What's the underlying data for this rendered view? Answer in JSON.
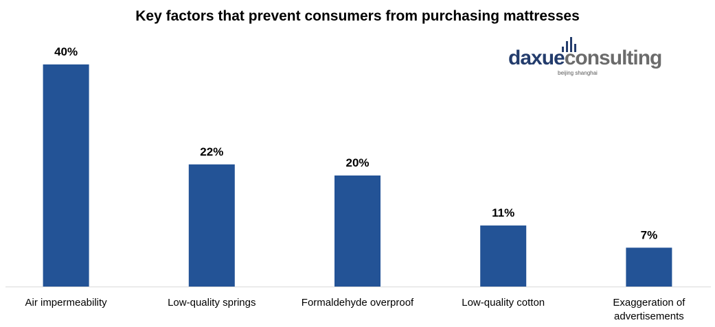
{
  "chart_data": {
    "type": "bar",
    "title": "Key factors that prevent consumers from purchasing mattresses",
    "categories": [
      "Air impermeability",
      "Low-quality springs",
      "Formaldehyde overproof",
      "Low-quality cotton",
      "Exaggeration of advertisements"
    ],
    "category_lines": [
      [
        "Air impermeability"
      ],
      [
        "Low-quality springs"
      ],
      [
        "Formaldehyde overproof"
      ],
      [
        "Low-quality cotton"
      ],
      [
        "Exaggeration of",
        "advertisements"
      ]
    ],
    "values": [
      40,
      22,
      20,
      11,
      7
    ],
    "data_labels": [
      "40%",
      "22%",
      "20%",
      "11%",
      "7%"
    ],
    "unit": "%",
    "ylim": [
      0,
      40
    ],
    "grid": false,
    "legend": "none",
    "bar_color": "#235396"
  },
  "logo": {
    "brand_part1": "daxue",
    "brand_part2": "consulting",
    "tagline": "beijing shanghai",
    "colors": {
      "primary": "#233c6c",
      "secondary": "#6b6b6b"
    }
  }
}
